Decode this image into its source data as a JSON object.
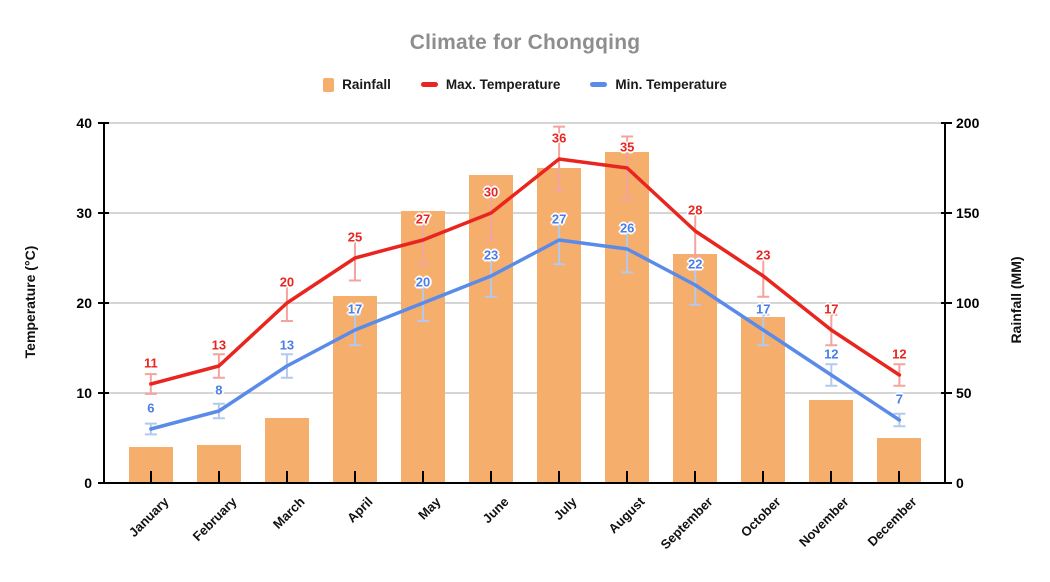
{
  "chart_data": {
    "type": "bar+line combo",
    "title": "Climate for Chongqing",
    "title_color": "#8E8E8E",
    "categories": [
      "January",
      "February",
      "March",
      "April",
      "May",
      "June",
      "July",
      "August",
      "September",
      "October",
      "November",
      "December"
    ],
    "series": [
      {
        "name": "Rainfall",
        "type": "bar",
        "axis": "right",
        "unit": "MM",
        "values": [
          20,
          21,
          36,
          104,
          151,
          171,
          175,
          184,
          127,
          92,
          46,
          25
        ],
        "color": "#F5AE6B",
        "value_labels_shown": false
      },
      {
        "name": "Max. Temperature",
        "type": "line",
        "axis": "left",
        "unit": "°C",
        "values": [
          11,
          13,
          20,
          25,
          27,
          30,
          36,
          35,
          28,
          23,
          17,
          12
        ],
        "color": "#E8261F",
        "label_color": "#E8261F",
        "error_bar_color": "#F4A39E",
        "error_bars": {
          "type": "percent",
          "value": 10
        },
        "value_labels_shown": true
      },
      {
        "name": "Min. Temperature",
        "type": "line",
        "axis": "left",
        "unit": "°C",
        "values": [
          6,
          8,
          13,
          17,
          20,
          23,
          27,
          26,
          22,
          17,
          12,
          7
        ],
        "color": "#5A8BE8",
        "label_color": "#4A7EE8",
        "error_bar_color": "#B3C9EE",
        "error_bars": {
          "type": "percent",
          "value": 10
        },
        "value_labels_shown": true
      }
    ],
    "left_axis": {
      "title": "Temperature (°C)",
      "range": [
        0,
        40
      ],
      "ticks": [
        0,
        10,
        20,
        30,
        40
      ]
    },
    "right_axis": {
      "title": "Rainfall (MM)",
      "range": [
        0,
        200
      ],
      "ticks": [
        0,
        50,
        100,
        150,
        200
      ]
    },
    "grid": true,
    "gridline_color": "#D5D5D5",
    "axis_color": "#000000",
    "legend_position": "top"
  }
}
